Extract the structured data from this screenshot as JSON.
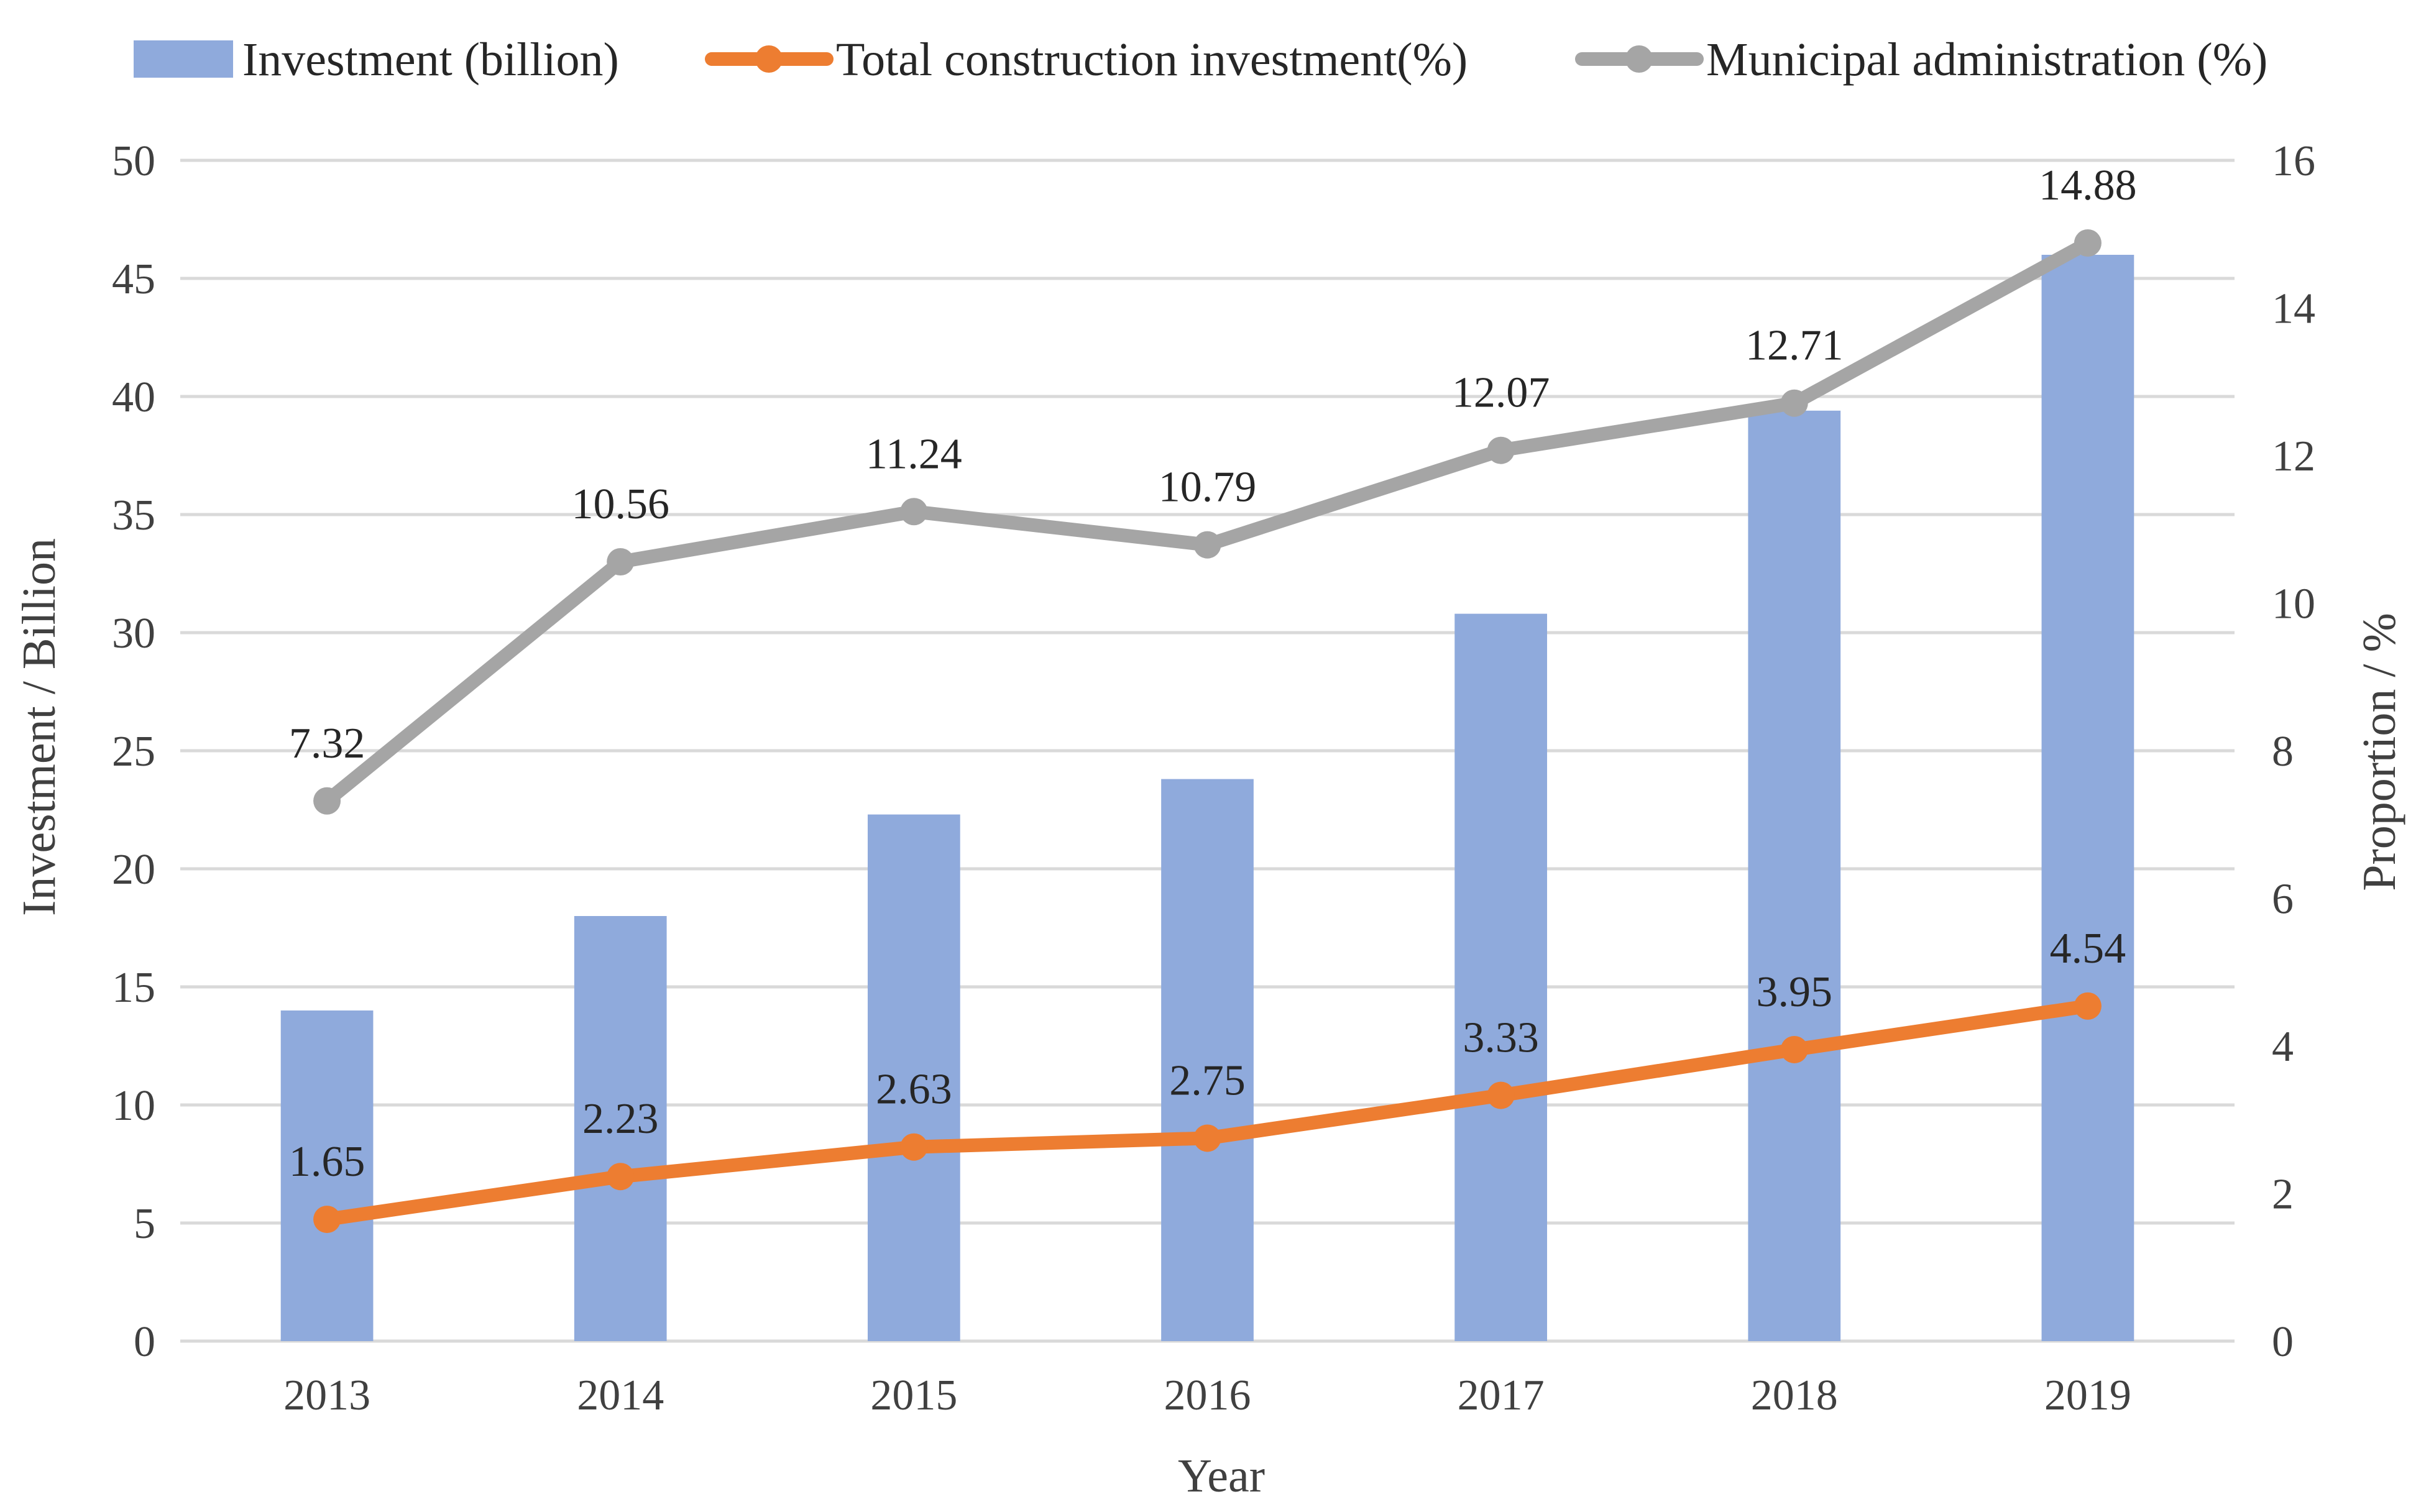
{
  "chart_data": {
    "type": "bar",
    "categories": [
      "2013",
      "2014",
      "2015",
      "2016",
      "2017",
      "2018",
      "2019"
    ],
    "xlabel": "Year",
    "ylabel": "Investment / Billion",
    "y2label": "Proportion / %",
    "ylim": [
      0,
      50
    ],
    "y2lim": [
      0,
      16
    ],
    "yticks": [
      "0",
      "5",
      "10",
      "15",
      "20",
      "25",
      "30",
      "35",
      "40",
      "45",
      "50"
    ],
    "y2ticks": [
      "0",
      "2",
      "4",
      "6",
      "8",
      "10",
      "12",
      "14",
      "16"
    ],
    "grid": true,
    "legend_position": "top",
    "series": [
      {
        "name": "Investment (billion)",
        "type": "bar",
        "axis": "left",
        "color": "#8faadc",
        "values": [
          14.0,
          18.0,
          22.3,
          23.8,
          30.8,
          39.4,
          46.0
        ]
      },
      {
        "name": "Total construction investment(%)",
        "type": "line",
        "axis": "right",
        "color": "#ed7d31",
        "values": [
          1.65,
          2.23,
          2.63,
          2.75,
          3.33,
          3.95,
          4.54
        ],
        "labels": [
          "1.65",
          "2.23",
          "2.63",
          "2.75",
          "3.33",
          "3.95",
          "4.54"
        ]
      },
      {
        "name": "Municipal administration (%)",
        "type": "line",
        "axis": "right",
        "color": "#a5a5a5",
        "values": [
          7.32,
          10.56,
          11.24,
          10.79,
          12.07,
          12.71,
          14.88
        ],
        "labels": [
          "7.32",
          "10.56",
          "11.24",
          "10.79",
          "12.07",
          "12.71",
          "14.88"
        ]
      }
    ]
  }
}
